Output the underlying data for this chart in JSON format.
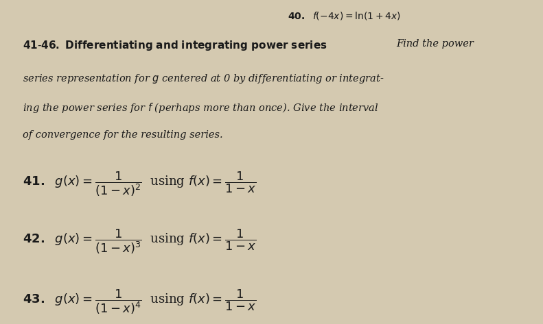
{
  "bg_color": "#d4c9b0",
  "text_color": "#1a1a1a",
  "page_bg": "#e8dfc8",
  "top_line": "f(-4x) = \\ln(1+4x)",
  "top_line_prefix": "40.",
  "section_header_bold": "41\\u201346. Differentiating and integrating power series",
  "section_header_normal": " Find the power series representation for $g$ centered at 0 by differentiating or integrating the power series for $f$ (perhaps more than once). Give the interval of convergence for the resulting series.",
  "problems": [
    {
      "number": "41.",
      "g_expr": "g(x) = \\dfrac{1}{(1-x)^2}",
      "f_expr": "f(x) = \\dfrac{1}{1-x}"
    },
    {
      "number": "42.",
      "g_expr": "g(x) = \\dfrac{1}{(1-x)^3}",
      "f_expr": "f(x) = \\dfrac{1}{1-x}"
    },
    {
      "number": "43.",
      "g_expr": "g(x) = \\dfrac{1}{(1-x)^4}",
      "f_expr": "f(x) = \\dfrac{1}{1-x}"
    }
  ],
  "figsize": [
    7.91,
    4.73
  ],
  "dpi": 100
}
